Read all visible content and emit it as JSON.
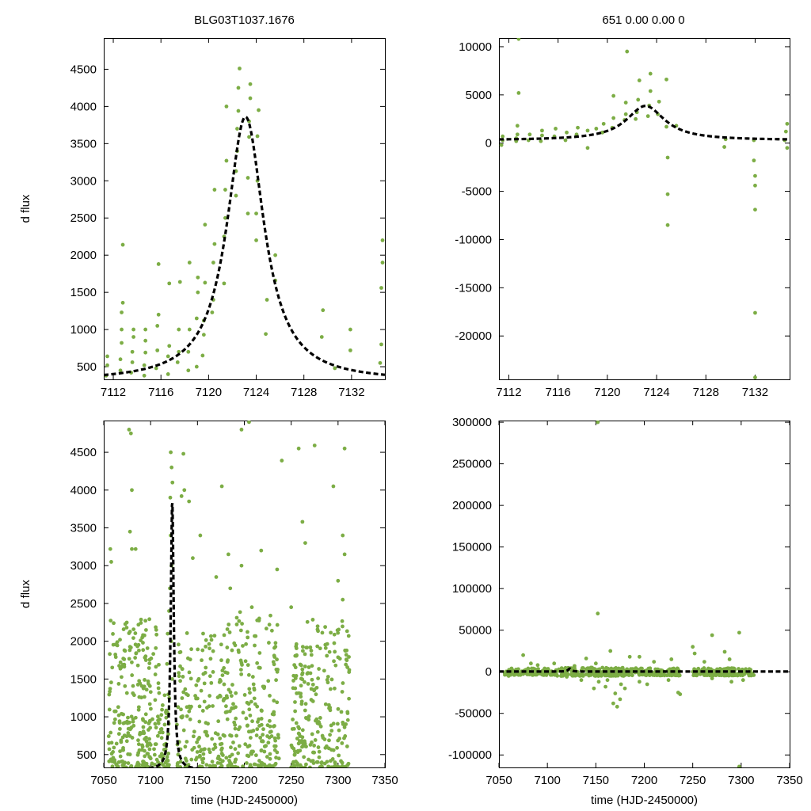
{
  "chart_data": [
    {
      "type": "scatter",
      "panel": "top-left",
      "title": "BLG03T1037.1676",
      "xlabel": "",
      "ylabel": "d flux",
      "xlim": [
        7111.2,
        7134.8
      ],
      "ylim": [
        330,
        4920
      ],
      "xticks": [
        7112,
        7116,
        7120,
        7124,
        7128,
        7132
      ],
      "yticks": [
        500,
        1000,
        1500,
        2000,
        2500,
        3000,
        3500,
        4000,
        4500
      ],
      "x_tick_labels": [
        "7112",
        "7116",
        "7120",
        "7124",
        "7128",
        "7132"
      ],
      "y_tick_labels": [
        "500",
        "1000",
        "1500",
        "2000",
        "2500",
        "3000",
        "3500",
        "4000",
        "4500"
      ],
      "point_color": "#7cad45",
      "model_color": "#000000",
      "model": {
        "baseline": 300,
        "amplitude": 3560,
        "t0": 7123.1,
        "tE": 1.9
      },
      "points": [
        [
          7111.4,
          380
        ],
        [
          7111.5,
          520
        ],
        [
          7111.5,
          640
        ],
        [
          7112.6,
          450
        ],
        [
          7112.6,
          600
        ],
        [
          7112.7,
          820
        ],
        [
          7112.7,
          1000
        ],
        [
          7112.7,
          1230
        ],
        [
          7112.8,
          1360
        ],
        [
          7112.8,
          2140
        ],
        [
          7113.5,
          420
        ],
        [
          7113.6,
          560
        ],
        [
          7113.6,
          700
        ],
        [
          7113.7,
          1000
        ],
        [
          7113.7,
          900
        ],
        [
          7114.6,
          380
        ],
        [
          7114.6,
          520
        ],
        [
          7114.7,
          690
        ],
        [
          7114.7,
          850
        ],
        [
          7114.7,
          1000
        ],
        [
          7115.6,
          480
        ],
        [
          7115.7,
          720
        ],
        [
          7115.7,
          1050
        ],
        [
          7115.8,
          1200
        ],
        [
          7115.8,
          1880
        ],
        [
          7116.6,
          400
        ],
        [
          7116.6,
          640
        ],
        [
          7116.7,
          780
        ],
        [
          7116.7,
          1620
        ],
        [
          7117.4,
          560
        ],
        [
          7117.5,
          700
        ],
        [
          7117.5,
          1000
        ],
        [
          7117.6,
          1640
        ],
        [
          7118.3,
          450
        ],
        [
          7118.3,
          700
        ],
        [
          7118.4,
          1000
        ],
        [
          7118.4,
          1900
        ],
        [
          7119.0,
          500
        ],
        [
          7119.0,
          1150
        ],
        [
          7119.1,
          1500
        ],
        [
          7119.1,
          1700
        ],
        [
          7119.5,
          650
        ],
        [
          7119.6,
          930
        ],
        [
          7119.6,
          1120
        ],
        [
          7119.7,
          1630
        ],
        [
          7119.7,
          2410
        ],
        [
          7120.3,
          1230
        ],
        [
          7120.4,
          1400
        ],
        [
          7120.4,
          1900
        ],
        [
          7120.5,
          2150
        ],
        [
          7120.5,
          2880
        ],
        [
          7121.3,
          1620
        ],
        [
          7121.3,
          2250
        ],
        [
          7121.4,
          2500
        ],
        [
          7121.4,
          2880
        ],
        [
          7121.5,
          3270
        ],
        [
          7121.5,
          4000
        ],
        [
          7122.3,
          2800
        ],
        [
          7122.3,
          3130
        ],
        [
          7122.4,
          3400
        ],
        [
          7122.4,
          3700
        ],
        [
          7122.5,
          3940
        ],
        [
          7122.5,
          4250
        ],
        [
          7122.6,
          4510
        ],
        [
          7123.3,
          2560
        ],
        [
          7123.3,
          3040
        ],
        [
          7123.4,
          3590
        ],
        [
          7123.4,
          3800
        ],
        [
          7123.5,
          4110
        ],
        [
          7123.5,
          4300
        ],
        [
          7124.0,
          2200
        ],
        [
          7124.0,
          2560
        ],
        [
          7124.1,
          3000
        ],
        [
          7124.1,
          3600
        ],
        [
          7124.2,
          3950
        ],
        [
          7124.8,
          940
        ],
        [
          7124.9,
          1400
        ],
        [
          7125.6,
          1660
        ],
        [
          7125.6,
          2000
        ],
        [
          7129.5,
          900
        ],
        [
          7129.6,
          1260
        ],
        [
          7130.6,
          480
        ],
        [
          7131.9,
          720
        ],
        [
          7131.9,
          1000
        ],
        [
          7134.4,
          550
        ],
        [
          7134.5,
          800
        ],
        [
          7134.5,
          1560
        ],
        [
          7134.6,
          2200
        ],
        [
          7134.6,
          1900
        ]
      ]
    },
    {
      "type": "scatter",
      "panel": "top-right",
      "title": "651   0.00   0.00   0",
      "xlabel": "",
      "ylabel": "",
      "xlim": [
        7111.2,
        7134.8
      ],
      "ylim": [
        -24500,
        10900
      ],
      "xticks": [
        7112,
        7116,
        7120,
        7124,
        7128,
        7132
      ],
      "yticks": [
        10000,
        5000,
        0,
        -5000,
        -10000,
        -15000,
        -20000
      ],
      "x_tick_labels": [
        "7112",
        "7116",
        "7120",
        "7124",
        "7128",
        "7132"
      ],
      "y_tick_labels": [
        "10000",
        "5000",
        "0",
        "-5000",
        "-10000",
        "-15000",
        "-20000"
      ],
      "point_color": "#7cad45",
      "model_color": "#000000",
      "model": {
        "baseline": 300,
        "amplitude": 3560,
        "t0": 7123.1,
        "tE": 1.9
      },
      "points": [
        [
          7111.4,
          -200
        ],
        [
          7111.5,
          300
        ],
        [
          7111.5,
          700
        ],
        [
          7112.6,
          200
        ],
        [
          7112.6,
          500
        ],
        [
          7112.7,
          900
        ],
        [
          7112.7,
          1800
        ],
        [
          7112.8,
          5200
        ],
        [
          7112.8,
          10800
        ],
        [
          7113.6,
          300
        ],
        [
          7113.7,
          900
        ],
        [
          7114.6,
          200
        ],
        [
          7114.7,
          800
        ],
        [
          7114.7,
          1300
        ],
        [
          7115.7,
          700
        ],
        [
          7115.8,
          1500
        ],
        [
          7116.6,
          300
        ],
        [
          7116.7,
          1100
        ],
        [
          7117.5,
          900
        ],
        [
          7117.6,
          1600
        ],
        [
          7118.4,
          -500
        ],
        [
          7118.4,
          1300
        ],
        [
          7119.1,
          1500
        ],
        [
          7119.6,
          1100
        ],
        [
          7119.7,
          2000
        ],
        [
          7120.4,
          1600
        ],
        [
          7120.5,
          2600
        ],
        [
          7120.5,
          4900
        ],
        [
          7121.4,
          2400
        ],
        [
          7121.5,
          3000
        ],
        [
          7121.5,
          4200
        ],
        [
          7121.6,
          9500
        ],
        [
          7122.3,
          2500
        ],
        [
          7122.4,
          3200
        ],
        [
          7122.5,
          4500
        ],
        [
          7122.6,
          6500
        ],
        [
          7123.3,
          2800
        ],
        [
          7123.4,
          3900
        ],
        [
          7123.5,
          5400
        ],
        [
          7123.5,
          7200
        ],
        [
          7124.1,
          3000
        ],
        [
          7124.2,
          4300
        ],
        [
          7124.8,
          6600
        ],
        [
          7124.8,
          1700
        ],
        [
          7124.9,
          -1500
        ],
        [
          7124.9,
          -5300
        ],
        [
          7124.9,
          -8500
        ],
        [
          7125.6,
          1800
        ],
        [
          7129.5,
          -400
        ],
        [
          7129.6,
          400
        ],
        [
          7131.9,
          300
        ],
        [
          7131.9,
          -1800
        ],
        [
          7132.0,
          -3400
        ],
        [
          7132.0,
          -4400
        ],
        [
          7132.0,
          -6900
        ],
        [
          7132.0,
          -17600
        ],
        [
          7132.0,
          -24300
        ],
        [
          7134.4,
          300
        ],
        [
          7134.5,
          1200
        ],
        [
          7134.6,
          2000
        ],
        [
          7134.6,
          -500
        ]
      ]
    },
    {
      "type": "scatter",
      "panel": "bottom-left",
      "title": "",
      "xlabel": "time (HJD-2450000)",
      "ylabel": "d flux",
      "xlim": [
        7050,
        7350
      ],
      "ylim": [
        330,
        4920
      ],
      "xticks": [
        7050,
        7100,
        7150,
        7200,
        7250,
        7300,
        7350
      ],
      "yticks": [
        500,
        1000,
        1500,
        2000,
        2500,
        3000,
        3500,
        4000,
        4500
      ],
      "x_tick_labels": [
        "7050",
        "7100",
        "7150",
        "7200",
        "7250",
        "7300",
        "7350"
      ],
      "y_tick_labels": [
        "500",
        "1000",
        "1500",
        "2000",
        "2500",
        "3000",
        "3500",
        "4000",
        "4500"
      ],
      "point_color": "#7cad45",
      "model_color": "#000000",
      "model": {
        "baseline": 300,
        "amplitude": 3560,
        "t0": 7123.1,
        "tE": 1.9
      },
      "highlight_points": [
        [
          7121.5,
          4500
        ],
        [
          7122.4,
          4300
        ],
        [
          7123.3,
          4100
        ],
        [
          7121.4,
          3400
        ],
        [
          7122.3,
          3000
        ],
        [
          7120.6,
          2700
        ],
        [
          7119.7,
          2400
        ],
        [
          7118.2,
          2100
        ],
        [
          7117.5,
          1700
        ],
        [
          7121.0,
          3900
        ],
        [
          7122.0,
          2000
        ],
        [
          7123.0,
          1500
        ],
        [
          7135.0,
          4480
        ],
        [
          7136.0,
          4000
        ],
        [
          7077.0,
          4800
        ],
        [
          7079.0,
          4750
        ],
        [
          7080.0,
          4000
        ],
        [
          7078.0,
          3450
        ],
        [
          7080.0,
          3220
        ],
        [
          7084.0,
          3220
        ],
        [
          7057.0,
          3220
        ],
        [
          7058.0,
          3050
        ],
        [
          7133.0,
          3920
        ],
        [
          7141.0,
          3850
        ],
        [
          7176.0,
          4050
        ],
        [
          7197.0,
          4800
        ],
        [
          7205.0,
          4900
        ],
        [
          7240.0,
          4390
        ],
        [
          7258.0,
          4550
        ],
        [
          7275.0,
          4590
        ],
        [
          7295.0,
          4050
        ],
        [
          7307.0,
          4550
        ],
        [
          7305.0,
          3400
        ],
        [
          7307.0,
          3150
        ],
        [
          7262.0,
          3580
        ],
        [
          7265.0,
          3300
        ],
        [
          7218.0,
          3200
        ],
        [
          7197.0,
          3000
        ],
        [
          7235.0,
          2950
        ],
        [
          7183.0,
          3150
        ],
        [
          7153.0,
          3400
        ],
        [
          7145.0,
          3100
        ],
        [
          7185.0,
          2700
        ],
        [
          7250.0,
          2450
        ],
        [
          7208.0,
          2450
        ],
        [
          7170.0,
          2850
        ],
        [
          7300.0,
          2800
        ],
        [
          7305.0,
          2550
        ],
        [
          7095.0,
          1750
        ],
        [
          7106.0,
          2150
        ]
      ],
      "bands": [
        {
          "x0": 7055,
          "x1": 7110,
          "n": 260,
          "ymin": 330,
          "ymax": 2300
        },
        {
          "x0": 7110,
          "x1": 7120,
          "n": 40,
          "ymin": 330,
          "ymax": 1300
        },
        {
          "x0": 7128,
          "x1": 7180,
          "n": 170,
          "ymin": 330,
          "ymax": 2200
        },
        {
          "x0": 7180,
          "x1": 7237,
          "n": 220,
          "ymin": 330,
          "ymax": 2400
        },
        {
          "x0": 7250,
          "x1": 7265,
          "n": 80,
          "ymin": 330,
          "ymax": 2200
        },
        {
          "x0": 7265,
          "x1": 7313,
          "n": 170,
          "ymin": 330,
          "ymax": 2300
        }
      ]
    },
    {
      "type": "scatter",
      "panel": "bottom-right",
      "title": "",
      "xlabel": "time (HJD-2450000)",
      "ylabel": "",
      "xlim": [
        7050,
        7350
      ],
      "ylim": [
        -115000,
        302000
      ],
      "xticks": [
        7050,
        7100,
        7150,
        7200,
        7250,
        7300,
        7350
      ],
      "yticks": [
        300000,
        250000,
        200000,
        150000,
        100000,
        50000,
        0,
        -50000,
        -100000
      ],
      "x_tick_labels": [
        "7050",
        "7100",
        "7150",
        "7200",
        "7250",
        "7300",
        "7350"
      ],
      "y_tick_labels": [
        "300000",
        "250000",
        "200000",
        "150000",
        "100000",
        "50000",
        "0",
        "-50000",
        "-100000"
      ],
      "point_color": "#7cad45",
      "model_color": "#000000",
      "model": {
        "baseline": 300,
        "amplitude": 3560,
        "t0": 7123.1,
        "tE": 1.9
      },
      "highlight_points": [
        [
          7152,
          300000
        ],
        [
          7152,
          70000
        ],
        [
          7298,
          -114000
        ],
        [
          7298,
          47000
        ],
        [
          7270,
          44000
        ],
        [
          7283,
          24000
        ],
        [
          7288,
          15000
        ],
        [
          7250,
          30000
        ],
        [
          7252,
          22000
        ],
        [
          7237,
          -27000
        ],
        [
          7235,
          -25000
        ],
        [
          7168,
          -38000
        ],
        [
          7172,
          -42000
        ],
        [
          7175,
          -33000
        ],
        [
          7170,
          -26000
        ],
        [
          7160,
          -18000
        ],
        [
          7165,
          25000
        ],
        [
          7148,
          -20000
        ],
        [
          7150,
          10000
        ],
        [
          7075,
          20000
        ],
        [
          7083,
          10000
        ],
        [
          7090,
          8000
        ],
        [
          7107,
          10000
        ],
        [
          7135,
          -10000
        ],
        [
          7140,
          16000
        ],
        [
          7145,
          5000
        ],
        [
          7203,
          -15000
        ],
        [
          7210,
          12000
        ],
        [
          7225,
          -10000
        ],
        [
          7228,
          15000
        ],
        [
          7180,
          -20000
        ],
        [
          7185,
          18000
        ],
        [
          7195,
          -12000
        ],
        [
          7270,
          -8000
        ],
        [
          7290,
          -12000
        ],
        [
          7302,
          -10000
        ],
        [
          7060,
          -5000
        ],
        [
          7063,
          4000
        ],
        [
          7120,
          -6000
        ],
        [
          7128,
          7000
        ],
        [
          7176,
          -15000
        ],
        [
          7162,
          -10000
        ],
        [
          7153,
          -12000
        ],
        [
          7195,
          18000
        ],
        [
          7262,
          12000
        ]
      ],
      "bands": [
        {
          "x0": 7056,
          "x1": 7110,
          "n": 120,
          "ymin": -4000,
          "ymax": 4000
        },
        {
          "x0": 7110,
          "x1": 7180,
          "n": 170,
          "ymin": -5000,
          "ymax": 5000
        },
        {
          "x0": 7180,
          "x1": 7237,
          "n": 150,
          "ymin": -4500,
          "ymax": 4500
        },
        {
          "x0": 7250,
          "x1": 7313,
          "n": 150,
          "ymin": -4500,
          "ymax": 4500
        }
      ]
    }
  ]
}
